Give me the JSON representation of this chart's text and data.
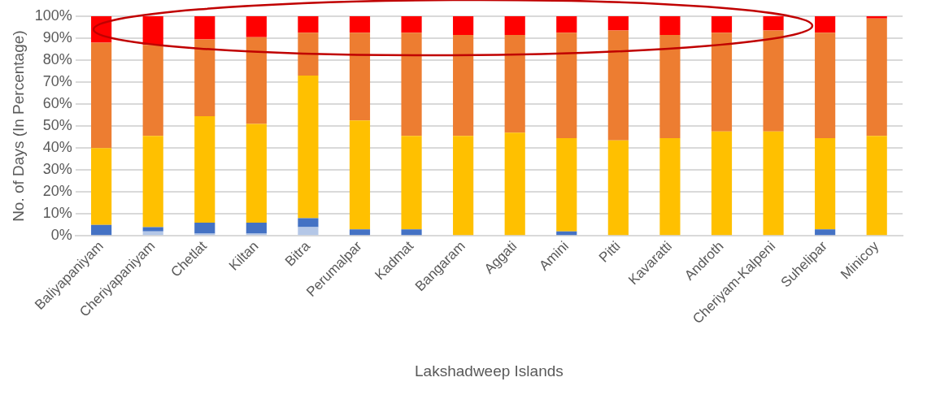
{
  "chart_data": {
    "type": "bar",
    "stacked": true,
    "xlabel": "Lakshadweep Islands",
    "ylabel": "No. of Days (In Percentage)",
    "categories": [
      "Baliyapaniyam",
      "Cheriyapaniyam",
      "Chetlat",
      "Kiltan",
      "Bitra",
      "Perumalpar",
      "Kadmat",
      "Bangaram",
      "Aggati",
      "Amini",
      "Pitti",
      "Kavaratti",
      "Androth",
      "Cheriyam-Kalpeni",
      "Suhelipar",
      "Minicoy"
    ],
    "series": [
      {
        "color": "#b4c7e7",
        "values": [
          0,
          2,
          1,
          1,
          4,
          0,
          0,
          0,
          0,
          0,
          0,
          0,
          0,
          0,
          0,
          0
        ]
      },
      {
        "color": "#4472c4",
        "values": [
          5,
          2,
          5,
          5,
          4,
          3,
          3,
          0,
          0,
          2,
          0,
          0,
          0,
          0,
          3,
          0
        ]
      },
      {
        "color": "#ffc000",
        "values": [
          35,
          41.5,
          48.5,
          45,
          65,
          49.5,
          42.5,
          45.5,
          47,
          42.5,
          43.5,
          44.5,
          47.5,
          47.5,
          41.5,
          45.5
        ]
      },
      {
        "color": "#ed7d31",
        "values": [
          48,
          41.5,
          35,
          39.5,
          19.5,
          40,
          47,
          46,
          44.5,
          48,
          50,
          47,
          45,
          46,
          48,
          53.5
        ]
      },
      {
        "color": "#ff0000",
        "values": [
          12,
          13,
          10.5,
          9.5,
          7.5,
          7.5,
          7.5,
          8.5,
          8.5,
          7.5,
          6.5,
          8.5,
          7.5,
          6.5,
          7.5,
          1
        ]
      }
    ],
    "ylim": [
      0,
      100
    ],
    "yticks": [
      {
        "value": 0,
        "label": "0%"
      },
      {
        "value": 10,
        "label": "10%"
      },
      {
        "value": 20,
        "label": "20%"
      },
      {
        "value": 30,
        "label": "30%"
      },
      {
        "value": 40,
        "label": "40%"
      },
      {
        "value": 50,
        "label": "50%"
      },
      {
        "value": 60,
        "label": "60%"
      },
      {
        "value": 70,
        "label": "70%"
      },
      {
        "value": 80,
        "label": "80%"
      },
      {
        "value": 90,
        "label": "90%"
      },
      {
        "value": 100,
        "label": "100%"
      }
    ],
    "grid": "y",
    "legend": false
  }
}
